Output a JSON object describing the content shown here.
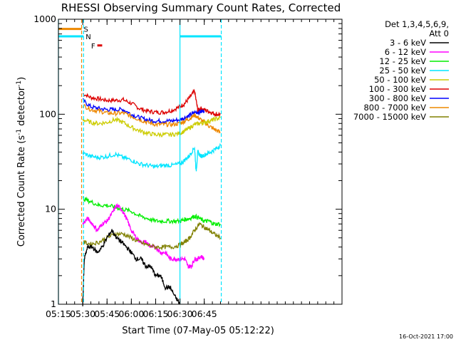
{
  "colors": {
    "background": "#ffffff",
    "axis": "#000000",
    "cyan": "#00e5ff",
    "orange": "#ee8800",
    "red": "#dd0000",
    "blue": "#0000ff",
    "green": "#00ee00",
    "magenta": "#ff00ff",
    "yellow": "#cccc00",
    "olive": "#808000",
    "black": "#000000"
  },
  "chart_data": {
    "type": "line",
    "title": "RHESSI Observing Summary Count Rates, Corrected",
    "xlabel": "Start Time (07-May-05 05:12:22)",
    "ylabel_main": "Corrected Count Rate (s",
    "ylabel_sup1": "-1",
    "ylabel_mid": " detector",
    "ylabel_sup2": "-1",
    "ylabel_end": ")",
    "yscale": "log",
    "xlim_min": [
      315,
      490
    ],
    "ylim": [
      1,
      1000
    ],
    "x_tick_min": [
      315,
      330,
      345,
      360,
      375,
      390,
      405
    ],
    "x_tick_labels": [
      "05:15",
      "05:30",
      "05:45",
      "06:00",
      "06:15",
      "06:30",
      "06:45"
    ],
    "y_tick_values": [
      1,
      10,
      100,
      1000
    ],
    "y_tick_labels": [
      "1",
      "10",
      "100",
      "1000"
    ],
    "legend": {
      "position": "right",
      "header1": "Det 1,3,4,5,6,9,",
      "header2": "Att 0",
      "entries": [
        {
          "label": "3 - 6 keV",
          "color": "#000000"
        },
        {
          "label": "6 - 12 keV",
          "color": "#ff00ff"
        },
        {
          "label": "12 - 25 keV",
          "color": "#00ee00"
        },
        {
          "label": "25 - 50 keV",
          "color": "#00e5ff"
        },
        {
          "label": "50 - 100 keV",
          "color": "#cccc00"
        },
        {
          "label": "100 - 300 keV",
          "color": "#dd0000"
        },
        {
          "label": "300 - 800 keV",
          "color": "#0000ff"
        },
        {
          "label": "800 - 7000 keV",
          "color": "#ee8800"
        },
        {
          "label": "7000 - 15000 keV",
          "color": "#808000"
        }
      ]
    },
    "series": [
      {
        "color": "#dd0000",
        "x_min": [
          330,
          335,
          340,
          345,
          350,
          355,
          360,
          365,
          370,
          375,
          380,
          385,
          390,
          393,
          396,
          399,
          401,
          403,
          406,
          409,
          412,
          415
        ],
        "y": [
          165,
          150,
          145,
          140,
          140,
          142,
          130,
          115,
          108,
          105,
          105,
          110,
          120,
          130,
          150,
          175,
          110,
          115,
          110,
          105,
          100,
          100
        ]
      },
      {
        "color": "#0000ff",
        "x_min": [
          330,
          335,
          340,
          345,
          350,
          355,
          360,
          365,
          370,
          375,
          380,
          385,
          390,
          393,
          396,
          399,
          402,
          405
        ],
        "y": [
          140,
          120,
          115,
          112,
          112,
          112,
          100,
          92,
          87,
          85,
          85,
          85,
          88,
          92,
          97,
          104,
          106,
          108
        ]
      },
      {
        "color": "#ee8800",
        "x_min": [
          330,
          335,
          340,
          345,
          350,
          355,
          360,
          365,
          370,
          375,
          380,
          385,
          390,
          393,
          396,
          399,
          402,
          405,
          408,
          411,
          415
        ],
        "y": [
          125,
          112,
          108,
          103,
          102,
          103,
          95,
          88,
          82,
          78,
          78,
          78,
          80,
          85,
          90,
          98,
          90,
          82,
          75,
          70,
          64
        ]
      },
      {
        "color": "#cccc00",
        "x_min": [
          330,
          335,
          340,
          345,
          350,
          355,
          360,
          365,
          370,
          375,
          380,
          385,
          390,
          393,
          396,
          399,
          402,
          405,
          408,
          411,
          415
        ],
        "y": [
          88,
          82,
          80,
          82,
          88,
          82,
          73,
          67,
          63,
          61,
          61,
          61,
          63,
          67,
          72,
          78,
          80,
          82,
          85,
          88,
          92
        ]
      },
      {
        "color": "#00e5ff",
        "x_min": [
          330,
          335,
          340,
          345,
          350,
          355,
          360,
          365,
          370,
          375,
          380,
          385,
          390,
          393,
          396,
          399,
          400,
          401,
          403,
          406,
          409,
          412,
          415
        ],
        "y": [
          39,
          36,
          35,
          36,
          38,
          35,
          33,
          30,
          29,
          28,
          29,
          29,
          30,
          33,
          37,
          45,
          25,
          40,
          36,
          38,
          40,
          43,
          47
        ]
      },
      {
        "color": "#00ee00",
        "x_min": [
          330,
          335,
          340,
          345,
          350,
          355,
          360,
          365,
          370,
          375,
          380,
          385,
          390,
          393,
          396,
          399,
          402,
          405,
          408,
          411,
          415
        ],
        "y": [
          13,
          12,
          11,
          11,
          10.5,
          10,
          9.5,
          8.5,
          8,
          7.5,
          7.5,
          7.5,
          7.5,
          7.8,
          8,
          8.5,
          8,
          7.5,
          7.5,
          7,
          7
        ]
      },
      {
        "color": "#ff00ff",
        "x_min": [
          330,
          333,
          336,
          339,
          342,
          345,
          348,
          351,
          354,
          357,
          360,
          363,
          366,
          369,
          372,
          375,
          378,
          381,
          384,
          387,
          390,
          393,
          395,
          397,
          399,
          401,
          403,
          405
        ],
        "y": [
          7,
          8,
          7,
          6,
          7,
          7.5,
          9,
          11,
          10,
          8,
          6,
          5,
          4.5,
          4.5,
          4,
          4,
          3.5,
          3.5,
          3,
          3,
          3,
          3,
          2.5,
          2.5,
          3,
          3,
          3.2,
          3
        ]
      },
      {
        "color": "#808000",
        "x_min": [
          330,
          335,
          340,
          345,
          350,
          355,
          360,
          365,
          370,
          375,
          380,
          385,
          390,
          393,
          396,
          399,
          402,
          405,
          408,
          411,
          415
        ],
        "y": [
          4.5,
          4.3,
          4.5,
          5,
          5.5,
          5.5,
          5,
          4.5,
          4.2,
          4,
          4,
          4,
          4.2,
          4.5,
          5,
          6,
          7,
          6.5,
          6,
          5.5,
          5
        ]
      },
      {
        "color": "#000000",
        "x_min": [
          330,
          331,
          333,
          336,
          339,
          342,
          345,
          348,
          351,
          354,
          357,
          360,
          363,
          366,
          369,
          372,
          375,
          378,
          381,
          384,
          387,
          390
        ],
        "y": [
          1,
          3,
          4,
          4,
          3.5,
          4,
          5,
          6,
          5,
          4.5,
          4,
          3.5,
          3,
          3,
          2.5,
          2.5,
          2,
          2,
          1.5,
          1.5,
          1.2,
          1
        ]
      }
    ],
    "vlines": [
      {
        "x_min": 315,
        "color": "#00e5ff",
        "dash": false
      },
      {
        "x_min": 329.3,
        "color": "#ee8800",
        "dash": true
      },
      {
        "x_min": 330.5,
        "color": "#00e5ff",
        "dash": true
      },
      {
        "x_min": 390,
        "color": "#00e5ff",
        "dash": false
      },
      {
        "x_min": 415.5,
        "color": "#00e5ff",
        "dash": true
      }
    ],
    "bars": [
      {
        "name": "S",
        "color": "#ee8800",
        "y": 790,
        "x_min": [
          315,
          329.3
        ]
      },
      {
        "name": "N",
        "color": "#00e5ff",
        "y": 660,
        "x_min": [
          315,
          330.5
        ]
      },
      {
        "name": "F",
        "color": "#dd0000",
        "y": 530,
        "x_min": [
          339,
          342
        ]
      },
      {
        "name": "",
        "color": "#00e5ff",
        "y": 660,
        "x_min": [
          390,
          415.5
        ]
      }
    ]
  },
  "footer": {
    "date": "16-Oct-2021 17:00"
  }
}
